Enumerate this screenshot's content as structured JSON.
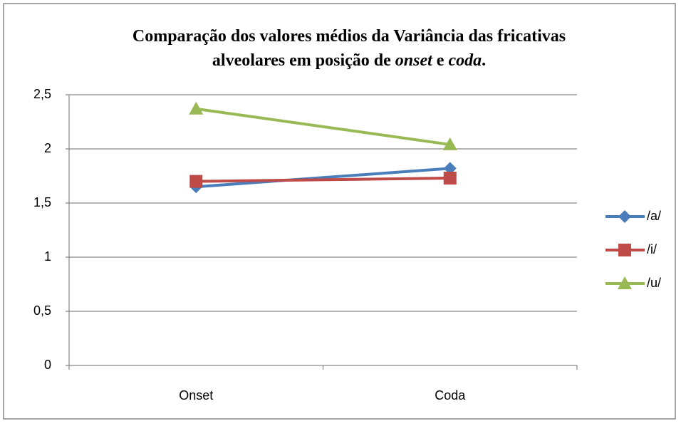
{
  "chart_data": {
    "type": "line",
    "title": [
      [
        {
          "text": "Comparação dos valores médios da Variância das fricativas"
        }
      ],
      [
        {
          "text": "alveolares em posição de "
        },
        {
          "text": "onset",
          "italic": true
        },
        {
          "text": " e "
        },
        {
          "text": "coda",
          "italic": true
        },
        {
          "text": "."
        }
      ]
    ],
    "categories": [
      "Onset",
      "Coda"
    ],
    "series": [
      {
        "name": "/a/",
        "color": "#4a7ebb",
        "marker": "diamond",
        "values": [
          1.65,
          1.82
        ]
      },
      {
        "name": "/i/",
        "color": "#be4b48",
        "marker": "square",
        "values": [
          1.7,
          1.73
        ]
      },
      {
        "name": "/u/",
        "color": "#98b954",
        "marker": "triangle",
        "values": [
          2.37,
          2.04
        ]
      }
    ],
    "ylim": [
      0,
      2.5
    ],
    "yticks": [
      0,
      {
        "value": 0.5,
        "label": "0,5"
      },
      1,
      {
        "value": 1.5,
        "label": "1,5"
      },
      2,
      {
        "value": 2.5,
        "label": "2,5"
      }
    ],
    "grid": true,
    "legend": "right"
  }
}
